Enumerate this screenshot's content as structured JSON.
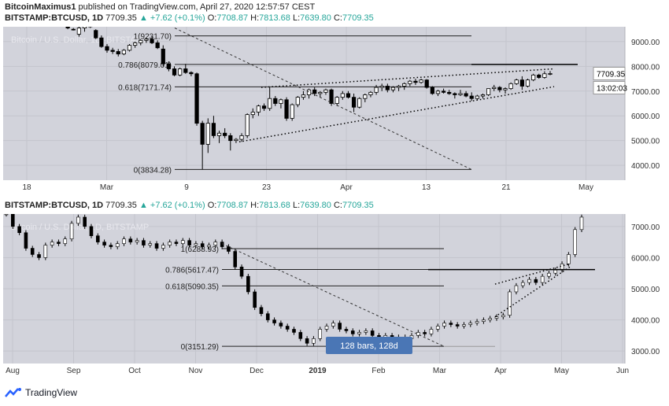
{
  "publish": {
    "author": "BitcoinMaximus1",
    "text": "published on TradingView.com, April 27, 2020 12:57:57 CEST"
  },
  "header1": {
    "symbol": "BITSTAMP:BTCUSD, 1D",
    "last": "7709.35",
    "change": "▲ +7.62 (+0.1%)",
    "o_label": "O:",
    "o": "7708.87",
    "h_label": "H:",
    "h": "7813.68",
    "l_label": "L:",
    "l": "7639.80",
    "c_label": "C:",
    "c": "7709.35"
  },
  "header2": {
    "symbol": "BITSTAMP:BTCUSD, 1D",
    "last": "7709.35",
    "change": "▲ +7.62 (+0.1%)",
    "o_label": "O:",
    "o": "7708.87",
    "h_label": "H:",
    "h": "7813.68",
    "l_label": "L:",
    "l": "7639.80",
    "c_label": "C:",
    "c": "7709.35"
  },
  "footer": {
    "brand": "TradingView"
  },
  "colors": {
    "bg": "#d2d3db",
    "grid": "#c4c5cd",
    "candle_up": "#ffffff",
    "candle_down": "#000000",
    "price_tag": "#ffffff",
    "bars_label": "#4a76b5"
  },
  "chart_data": [
    {
      "type": "candlestick",
      "watermark": "Bitcoin / U.S. Dollar, 1D, BITSTAMP",
      "y_ticks": [
        "9000.00",
        "8000.00",
        "7000.00",
        "6000.00",
        "5000.00",
        "4000.00"
      ],
      "ylim": [
        3400,
        9600
      ],
      "x_ticks": [
        "18",
        "Mar",
        "9",
        "23",
        "Apr",
        "13",
        "21",
        "May"
      ],
      "last_price_label": "7709.35",
      "countdown": "13:02:03",
      "fib_levels": [
        {
          "label": "1(9231.70)",
          "value": 9231.7
        },
        {
          "label": "0.786(8079.01)",
          "value": 8079.01
        },
        {
          "label": "0.618(7171.74)",
          "value": 7171.74
        },
        {
          "label": "0(3834.28)",
          "value": 3834.28
        }
      ],
      "candles": [
        [
          9780,
          9820,
          9700,
          9790
        ],
        [
          9650,
          9700,
          9500,
          9550
        ],
        [
          9500,
          9550,
          9450,
          9480
        ],
        [
          9300,
          9600,
          9200,
          9550
        ],
        [
          9550,
          9700,
          9400,
          9650
        ],
        [
          9700,
          9800,
          9550,
          9600
        ],
        [
          9450,
          9500,
          9100,
          9150
        ],
        [
          9150,
          9250,
          8750,
          8800
        ],
        [
          8800,
          8900,
          8550,
          8650
        ],
        [
          8650,
          8750,
          8500,
          8600
        ],
        [
          8600,
          8700,
          8400,
          8500
        ],
        [
          8500,
          8700,
          8450,
          8650
        ],
        [
          8650,
          8900,
          8600,
          8850
        ],
        [
          8850,
          9000,
          8750,
          8950
        ],
        [
          8950,
          9100,
          8850,
          9050
        ],
        [
          9050,
          9150,
          8950,
          9100
        ],
        [
          9100,
          9200,
          8900,
          8950
        ],
        [
          8950,
          9050,
          8700,
          8750
        ],
        [
          8700,
          8850,
          8000,
          8100
        ],
        [
          8100,
          8200,
          7800,
          7900
        ],
        [
          7900,
          8000,
          7600,
          7650
        ],
        [
          7650,
          7950,
          7600,
          7900
        ],
        [
          7900,
          8100,
          7700,
          7750
        ],
        [
          7750,
          7800,
          7600,
          7700
        ],
        [
          7700,
          7750,
          5600,
          5700
        ],
        [
          5700,
          5800,
          3834,
          4850
        ],
        [
          4850,
          5900,
          4500,
          5700
        ],
        [
          5700,
          6000,
          5100,
          5200
        ],
        [
          5200,
          5400,
          4900,
          5300
        ],
        [
          5300,
          5500,
          5100,
          5200
        ],
        [
          5200,
          5300,
          4600,
          5000
        ],
        [
          5000,
          5100,
          4900,
          5050
        ],
        [
          5050,
          5300,
          4950,
          5200
        ],
        [
          5200,
          6100,
          5100,
          6050
        ],
        [
          6050,
          6300,
          5900,
          6150
        ],
        [
          6150,
          6450,
          6000,
          6400
        ],
        [
          6400,
          6500,
          6200,
          6300
        ],
        [
          6300,
          7150,
          6200,
          6700
        ],
        [
          6700,
          6800,
          6400,
          6500
        ],
        [
          6500,
          6700,
          6300,
          6650
        ],
        [
          6650,
          6750,
          5800,
          5900
        ],
        [
          5900,
          6500,
          5800,
          6450
        ],
        [
          6450,
          6800,
          6350,
          6750
        ],
        [
          6750,
          7000,
          6650,
          6850
        ],
        [
          6850,
          7100,
          6700,
          7050
        ],
        [
          7050,
          7150,
          6800,
          6900
        ],
        [
          6900,
          7000,
          6750,
          6950
        ],
        [
          6950,
          7100,
          6850,
          7050
        ],
        [
          7050,
          7100,
          6400,
          6500
        ],
        [
          6500,
          6800,
          6400,
          6750
        ],
        [
          6750,
          7000,
          6650,
          6900
        ],
        [
          6900,
          7000,
          6700,
          6750
        ],
        [
          6750,
          6900,
          6150,
          6350
        ],
        [
          6350,
          6750,
          6300,
          6700
        ],
        [
          6700,
          6900,
          6550,
          6850
        ],
        [
          6850,
          7000,
          6750,
          6950
        ],
        [
          6950,
          7250,
          6850,
          7150
        ],
        [
          7150,
          7300,
          7000,
          7200
        ],
        [
          7200,
          7300,
          6950,
          7050
        ],
        [
          7050,
          7200,
          6950,
          7150
        ],
        [
          7150,
          7250,
          7000,
          7200
        ],
        [
          7200,
          7350,
          7050,
          7300
        ],
        [
          7300,
          7450,
          7200,
          7400
        ],
        [
          7400,
          7500,
          7250,
          7350
        ],
        [
          7350,
          7500,
          7300,
          7450
        ],
        [
          7450,
          7480,
          7100,
          7150
        ],
        [
          7150,
          7200,
          6850,
          6900
        ],
        [
          6900,
          7050,
          6800,
          7000
        ],
        [
          7000,
          7100,
          6900,
          6950
        ],
        [
          6950,
          7050,
          6850,
          6900
        ],
        [
          6900,
          6950,
          6700,
          6850
        ],
        [
          6850,
          7050,
          6800,
          6900
        ],
        [
          6900,
          7000,
          6750,
          6800
        ],
        [
          6800,
          6950,
          6600,
          6700
        ],
        [
          6700,
          6850,
          6650,
          6800
        ],
        [
          6800,
          6900,
          6700,
          6850
        ],
        [
          6850,
          7100,
          6800,
          7100
        ],
        [
          7100,
          7250,
          7000,
          7150
        ],
        [
          7150,
          7200,
          6950,
          7050
        ],
        [
          7050,
          7150,
          6900,
          7100
        ],
        [
          7100,
          7350,
          7050,
          7300
        ],
        [
          7300,
          7500,
          7250,
          7450
        ],
        [
          7450,
          7600,
          7050,
          7200
        ],
        [
          7200,
          7500,
          7150,
          7450
        ],
        [
          7450,
          7700,
          7400,
          7650
        ],
        [
          7650,
          7700,
          7500,
          7550
        ],
        [
          7550,
          7800,
          7500,
          7700
        ],
        [
          7700,
          7813,
          7639,
          7709
        ]
      ],
      "annotations": [
        {
          "type": "dotted-trendline",
          "from": [
            "Feb 14",
            9600
          ],
          "to": [
            "Apr 18",
            3834
          ]
        },
        {
          "type": "rising-wedge-upper",
          "from": [
            "Mar 20",
            7100
          ],
          "to": [
            "Apr 27",
            7880
          ]
        },
        {
          "type": "rising-wedge-lower",
          "from": [
            "Mar 20",
            5000
          ],
          "to": [
            "Apr 27",
            7200
          ]
        }
      ]
    },
    {
      "type": "candlestick",
      "watermark": "Bitcoin / U.S. Dollar, 1D, BITSTAMP",
      "y_ticks": [
        "7000.00",
        "6000.00",
        "5000.00",
        "4000.00",
        "3000.00"
      ],
      "ylim": [
        2600,
        7400
      ],
      "x_ticks": [
        "Aug",
        "Sep",
        "Oct",
        "Nov",
        "Dec",
        "2019",
        "Feb",
        "Mar",
        "Apr",
        "May",
        "Jun"
      ],
      "fib_levels": [
        {
          "label": "1(6288.93)",
          "value": 6288.93
        },
        {
          "label": "0.786(5617.47)",
          "value": 5617.47
        },
        {
          "label": "0.618(5090.35)",
          "value": 5090.35
        },
        {
          "label": "0(3151.29)",
          "value": 3151.29
        }
      ],
      "measure_label": "128 bars, 128d",
      "close_series": [
        7400,
        7000,
        6800,
        6300,
        6100,
        6000,
        6400,
        6500,
        6450,
        6600,
        7100,
        7300,
        7000,
        6700,
        6500,
        6400,
        6350,
        6450,
        6600,
        6500,
        6550,
        6400,
        6450,
        6300,
        6400,
        6500,
        6450,
        6550,
        6400,
        6450,
        6350,
        6400,
        6500,
        6350,
        6200,
        5700,
        5400,
        4900,
        4400,
        4200,
        4000,
        3900,
        3800,
        3700,
        3600,
        3400,
        3250,
        3400,
        3700,
        3800,
        3900,
        3700,
        3650,
        3550,
        3600,
        3650,
        3500,
        3450,
        3500,
        3450,
        3450,
        3400,
        3500,
        3600,
        3550,
        3700,
        3800,
        3900,
        3850,
        3800,
        3850,
        3900,
        3950,
        4000,
        4050,
        4100,
        4150,
        4900,
        5100,
        5200,
        5300,
        5200,
        5400,
        5500,
        5600,
        5800,
        6100,
        6900,
        7300
      ],
      "annotations": [
        {
          "type": "dotted-trendline",
          "from": [
            "Nov 10",
            6500
          ],
          "to": [
            "Mar 7",
            3151
          ]
        },
        {
          "type": "rising-wedge-upper",
          "from": [
            "Apr 2",
            5200
          ],
          "to": [
            "May 5",
            5800
          ]
        },
        {
          "type": "rising-wedge-lower",
          "from": [
            "Apr 2",
            4100
          ],
          "to": [
            "May 5",
            5700
          ]
        }
      ]
    }
  ]
}
